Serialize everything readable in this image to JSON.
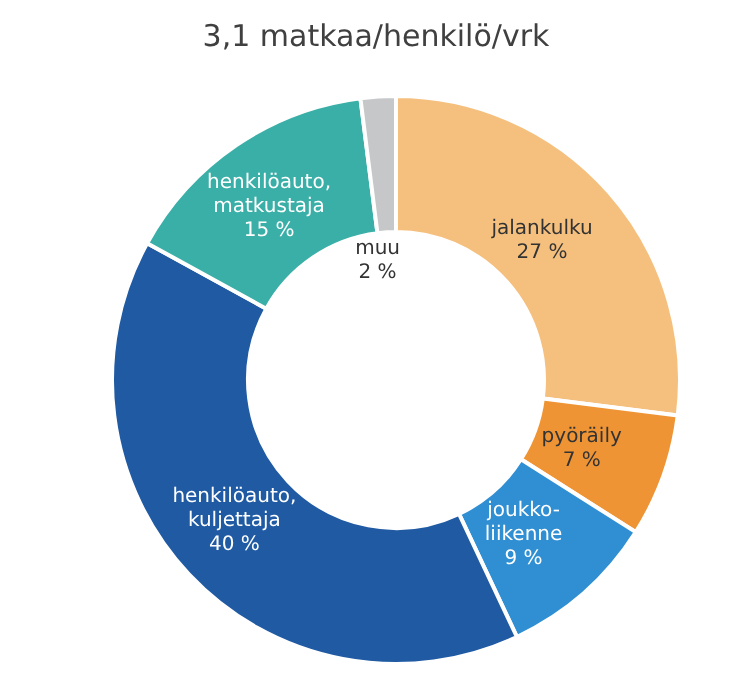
{
  "chart_data": {
    "type": "donut",
    "title": "3,1 matkaa/henkilö/vrk",
    "categories": [
      "jalankulku",
      "pyöräily",
      "joukko-liikenne",
      "henkilöauto, kuljettaja",
      "henkilöauto, matkustaja",
      "muu"
    ],
    "values": [
      27,
      7,
      9,
      40,
      15,
      2
    ],
    "value_labels": [
      "27 %",
      "7 %",
      "9 %",
      "40 %",
      "15 %",
      "2 %"
    ],
    "colors": [
      "#f5c07e",
      "#ef9434",
      "#2f8fd2",
      "#1f5aa3",
      "#3aafa7",
      "#c5c7c8"
    ],
    "legend": false
  }
}
